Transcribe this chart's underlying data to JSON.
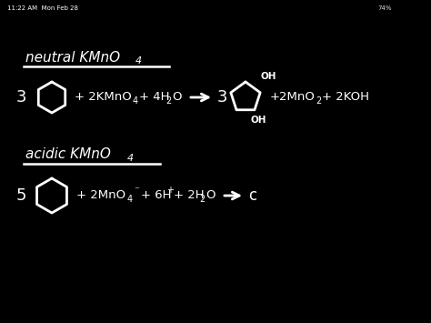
{
  "bg_color": "#000000",
  "text_color": "#ffffff",
  "fig_width": 4.74,
  "fig_height": 3.55,
  "dpi": 100,
  "status_bar_left": "11:22 AM  Mon Feb 28",
  "status_bar_right": "74%",
  "sec1_heading": "neutral KMnO",
  "sec1_sub4": "4",
  "sec2_heading": "acidic KMnO",
  "sec2_sub4": "4",
  "ring_sides": 6,
  "product_ring_sides": 5
}
